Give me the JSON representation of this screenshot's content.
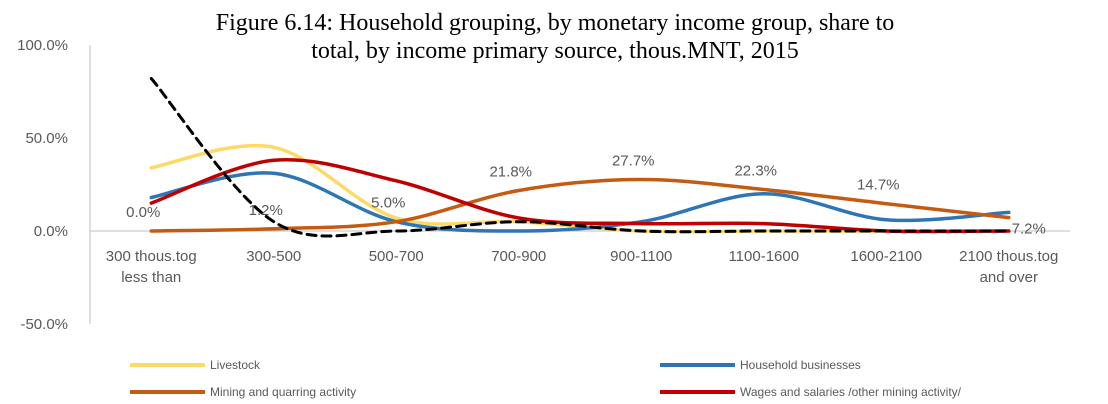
{
  "chart_data": {
    "type": "line",
    "title_lines": [
      "Figure 6.14: Household grouping, by monetary income group, share to",
      "total, by income primary source, thous.MNT, 2015"
    ],
    "categories": [
      [
        "300 thous.tog",
        "less than"
      ],
      [
        "300-500"
      ],
      [
        "500-700"
      ],
      [
        "700-900"
      ],
      [
        "900-1100"
      ],
      [
        "1100-1600"
      ],
      [
        "1600-2100"
      ],
      [
        "2100 thous.tog",
        "and over"
      ]
    ],
    "ylim": [
      -50,
      100
    ],
    "yticks": [
      -50,
      0,
      50,
      100
    ],
    "ytick_labels": [
      "-50.0%",
      "0.0%",
      "50.0%",
      "100.0%"
    ],
    "smooth": true,
    "legend_position": "bottom",
    "series": [
      {
        "name": "Livestock",
        "color": "#FFD966",
        "dashed": false,
        "values": [
          34,
          45,
          7,
          5,
          0,
          0,
          0,
          0
        ]
      },
      {
        "name": "Household businesses",
        "color": "#2E75B6",
        "dashed": false,
        "values": [
          18,
          31,
          5,
          0,
          5,
          20,
          6,
          10
        ]
      },
      {
        "name": "Mining and quarring activity",
        "color": "#C55A11",
        "dashed": false,
        "values": [
          0.0,
          1.2,
          5.0,
          21.8,
          27.7,
          22.3,
          14.7,
          7.2
        ],
        "labels": [
          "0.0%",
          "1.2%",
          "5.0%",
          "21.8%",
          "27.7%",
          "22.3%",
          "14.7%",
          "7.2%"
        ]
      },
      {
        "name": "Wages and salaries /other mining activity/",
        "color": "#C00000",
        "dashed": false,
        "values": [
          15,
          38,
          27,
          7,
          4,
          4,
          0,
          0
        ]
      },
      {
        "name": "",
        "color": "#000000",
        "dashed": true,
        "values": [
          82,
          5,
          0,
          5,
          0,
          0,
          0,
          0
        ]
      }
    ]
  }
}
